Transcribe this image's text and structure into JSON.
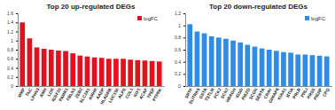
{
  "chart_data": [
    {
      "type": "bar",
      "title": "Top 20 up-regulated DEGs",
      "categories": [
        "MMP",
        "TNC",
        "LPHN3",
        "AMH",
        "LOX",
        "IGSF10",
        "PAMR1",
        "FBLN1",
        "ZEB2",
        "SLC2A1",
        "AMHR",
        "AADP",
        "HLADRB",
        "LOC150",
        "ALPS",
        "COL1",
        "IGF1",
        "ACAP",
        "TPEP",
        "PTPRK"
      ],
      "series": [
        {
          "name": "logFC",
          "color": "#e3101f",
          "values": [
            1.4,
            1.05,
            0.85,
            0.82,
            0.8,
            0.78,
            0.77,
            0.72,
            0.67,
            0.65,
            0.63,
            0.62,
            0.6,
            0.6,
            0.6,
            0.58,
            0.57,
            0.56,
            0.55,
            0.54
          ]
        }
      ],
      "ylim": [
        0,
        1.6
      ],
      "yticks": [
        0,
        0.2,
        0.4,
        0.6,
        0.8,
        1,
        1.2,
        1.4,
        1.6
      ],
      "legend": "top-right"
    },
    {
      "type": "bar",
      "title": "Top 20 down-regulated DEGs",
      "categories": [
        "SRTF",
        "SLITRK6",
        "GSTA",
        "TSTLM",
        "FCK2",
        "SCN7",
        "HBAGH",
        "IGSD",
        "PIEZO",
        "SCGN",
        "SERTA",
        "CRAY",
        "GIMAP8",
        "KIAA1",
        "BTIA",
        "PRLB",
        "PRLI",
        "PRSS",
        "PIERP",
        "CPQ"
      ],
      "series": [
        {
          "name": "logFC",
          "color": "#2e8be6",
          "values": [
            1.02,
            0.9,
            0.87,
            0.82,
            0.8,
            0.78,
            0.75,
            0.72,
            0.68,
            0.65,
            0.62,
            0.6,
            0.58,
            0.56,
            0.55,
            0.52,
            0.52,
            0.51,
            0.5,
            0.49
          ]
        }
      ],
      "ylim": [
        0,
        1.2
      ],
      "yticks": [
        0,
        0.2,
        0.4,
        0.6,
        0.8,
        1,
        1.2
      ],
      "legend": "top-right"
    }
  ]
}
